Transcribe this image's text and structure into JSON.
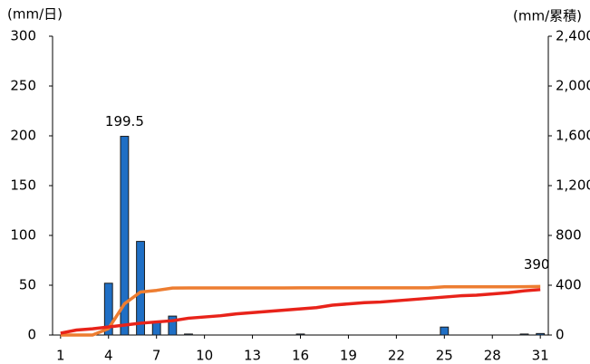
{
  "chart_data": {
    "type": "combo",
    "y_label": "(mm/日)",
    "y2_label": "(mm/累積)",
    "x": [
      1,
      2,
      3,
      4,
      5,
      6,
      7,
      8,
      9,
      10,
      11,
      12,
      13,
      14,
      15,
      16,
      17,
      18,
      19,
      20,
      21,
      22,
      23,
      24,
      25,
      26,
      27,
      28,
      29,
      30,
      31
    ],
    "xlim": [
      0.5,
      31.5
    ],
    "xticks": [
      1,
      4,
      7,
      10,
      13,
      16,
      19,
      22,
      25,
      28,
      31
    ],
    "ylim": [
      0,
      300
    ],
    "yticks": [
      0,
      50,
      100,
      150,
      200,
      250,
      300
    ],
    "y2lim": [
      0,
      2400
    ],
    "y2ticks": [
      0,
      400,
      800,
      {
        "value": 1200,
        "label": "1,200"
      },
      {
        "value": 1600,
        "label": "1,600"
      },
      {
        "value": 2000,
        "label": "2,000"
      },
      {
        "value": 2400,
        "label": "2,400"
      }
    ],
    "grid": false,
    "series": [
      {
        "type": "bar",
        "color": "#1f6fc5",
        "values": [
          0,
          0,
          0,
          52,
          199.5,
          94,
          13,
          19,
          1,
          0,
          0,
          0,
          0,
          0,
          0,
          1,
          0,
          0,
          0,
          0,
          0,
          0,
          0,
          0,
          8,
          0,
          0,
          0,
          0,
          1,
          1.5
        ],
        "value_labels": [
          null,
          null,
          null,
          null,
          "199.5",
          null,
          null,
          null,
          null,
          null,
          null,
          null,
          null,
          null,
          null,
          null,
          null,
          null,
          null,
          null,
          null,
          null,
          null,
          null,
          null,
          null,
          null,
          null,
          null,
          null,
          null
        ]
      },
      {
        "type": "line",
        "axis": "y2",
        "color": "#ed7d31",
        "values": [
          0,
          0,
          0,
          52,
          251.5,
          345.5,
          358.5,
          377.5,
          378.5,
          378.5,
          378.5,
          378.5,
          378.5,
          378.5,
          378.5,
          379.5,
          379.5,
          379.5,
          379.5,
          379.5,
          379.5,
          379.5,
          379.5,
          379.5,
          387.5,
          387.5,
          387.5,
          387.5,
          387.5,
          388.5,
          390
        ],
        "value_labels": [
          null,
          null,
          null,
          null,
          null,
          null,
          null,
          null,
          null,
          null,
          null,
          null,
          null,
          null,
          null,
          null,
          null,
          null,
          null,
          null,
          null,
          null,
          null,
          null,
          null,
          null,
          null,
          null,
          null,
          null,
          "390"
        ]
      },
      {
        "type": "line",
        "axis": "y2",
        "color": "#e8231a",
        "values": [
          15,
          40,
          50,
          65,
          80,
          95,
          105,
          115,
          135,
          145,
          155,
          170,
          180,
          190,
          200,
          210,
          220,
          240,
          250,
          260,
          265,
          275,
          285,
          295,
          305,
          315,
          320,
          330,
          340,
          355,
          365
        ]
      }
    ]
  }
}
